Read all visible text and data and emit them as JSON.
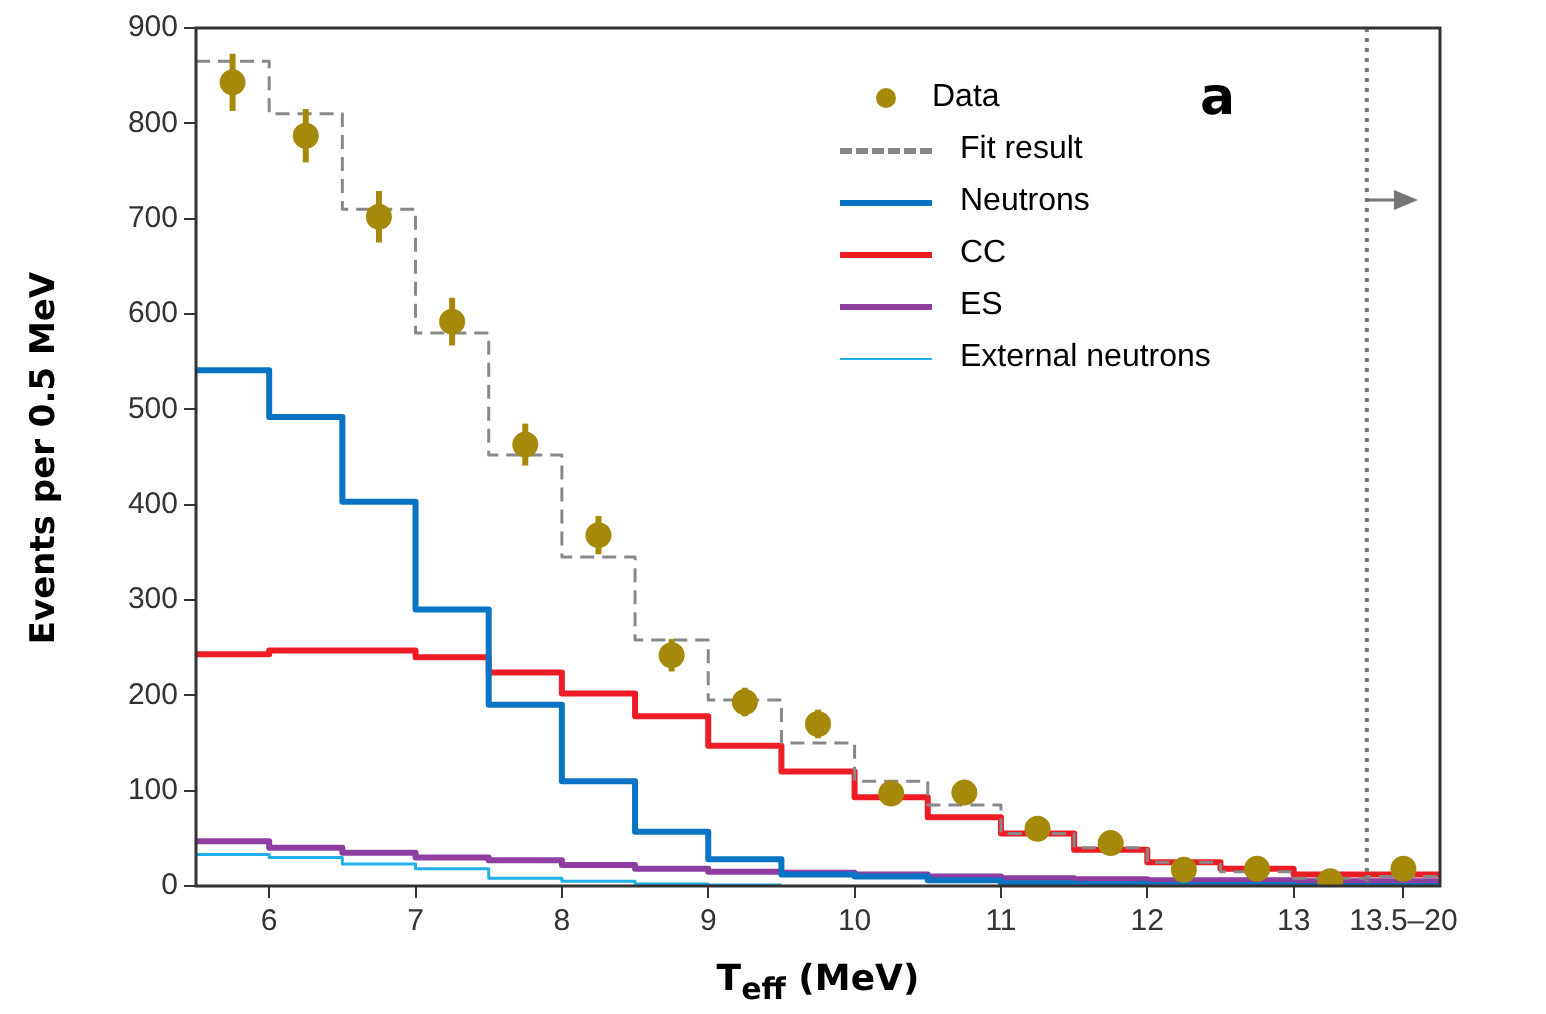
{
  "chart_data": {
    "type": "step",
    "xlabel": "T$_{eff}$ (MeV)",
    "ylabel": "Events per 0.5 MeV",
    "annotations": [
      "a"
    ],
    "xlim": [
      5.5,
      14.0
    ],
    "xticks": [
      6,
      7,
      8,
      9,
      10,
      11,
      12,
      13,
      {
        "value": 13.75,
        "label": "13.5–20"
      }
    ],
    "ylim": [
      0,
      900
    ],
    "yticks": [
      0,
      100,
      200,
      300,
      400,
      500,
      600,
      700,
      800,
      900
    ],
    "grid": false,
    "legend": "top right",
    "ref_lines": [
      {
        "axis": "x",
        "value": 13.5,
        "color": "#777777",
        "line_style": "dotted"
      }
    ],
    "series": [
      {
        "name": "Data",
        "type": "scatter",
        "marker": "circle",
        "color": "#a6890a",
        "x": [
          5.75,
          6.25,
          6.75,
          7.25,
          7.75,
          8.25,
          8.75,
          9.25,
          9.75,
          10.25,
          10.75,
          11.25,
          11.75,
          12.25,
          12.75,
          13.25,
          13.75
        ],
        "values": [
          843,
          787,
          702,
          592,
          463,
          368,
          242,
          193,
          170,
          97,
          98,
          60,
          45,
          17,
          18,
          5,
          18
        ],
        "errors": [
          30,
          28,
          27,
          25,
          22,
          20,
          17,
          15,
          15,
          null,
          null,
          null,
          null,
          null,
          null,
          null,
          null
        ]
      },
      {
        "name": "Fit result",
        "color": "#888888",
        "line_style": "dashed",
        "x": [
          5.5,
          6.0,
          6.5,
          7.0,
          7.5,
          8.0,
          8.5,
          9.0,
          9.5,
          10.0,
          10.5,
          11.0,
          11.5,
          12.0,
          12.5,
          13.0,
          13.5,
          14.0
        ],
        "values": [
          865,
          810,
          710,
          580,
          452,
          345,
          258,
          195,
          150,
          110,
          85,
          55,
          40,
          25,
          15,
          8,
          10,
          10
        ]
      },
      {
        "name": "Neutrons",
        "color": "#0a74c4",
        "x": [
          5.5,
          6.0,
          6.5,
          7.0,
          7.5,
          8.0,
          8.5,
          9.0,
          9.5,
          10.0,
          10.5,
          11.0,
          11.5,
          12.0,
          12.5,
          13.0,
          13.5,
          14.0
        ],
        "values": [
          541,
          492,
          403,
          290,
          190,
          110,
          57,
          28,
          12,
          10,
          6,
          3,
          2,
          1,
          1,
          0,
          0,
          0
        ]
      },
      {
        "name": "CC",
        "color": "#ee1c24",
        "x": [
          5.5,
          6.0,
          6.5,
          7.0,
          7.5,
          8.0,
          8.5,
          9.0,
          9.5,
          10.0,
          10.5,
          11.0,
          11.5,
          12.0,
          12.5,
          13.0,
          13.5,
          14.0
        ],
        "values": [
          243,
          247,
          247,
          240,
          224,
          202,
          178,
          147,
          120,
          93,
          72,
          55,
          38,
          25,
          18,
          12,
          12,
          12
        ]
      },
      {
        "name": "ES",
        "color": "#8e3ea0",
        "x": [
          5.5,
          6.0,
          6.5,
          7.0,
          7.5,
          8.0,
          8.5,
          9.0,
          9.5,
          10.0,
          10.5,
          11.0,
          11.5,
          12.0,
          12.5,
          13.0,
          13.5,
          14.0
        ],
        "values": [
          47,
          40,
          35,
          30,
          27,
          22,
          18,
          15,
          14,
          12,
          10,
          8,
          7,
          6,
          6,
          5,
          5,
          5
        ]
      },
      {
        "name": "External neutrons",
        "color": "#22b0e8",
        "x": [
          5.5,
          6.0,
          6.5,
          7.0,
          7.5,
          8.0,
          8.5,
          9.0,
          9.5
        ],
        "values": [
          33,
          30,
          23,
          18,
          8,
          5,
          2,
          1,
          1
        ]
      }
    ]
  }
}
